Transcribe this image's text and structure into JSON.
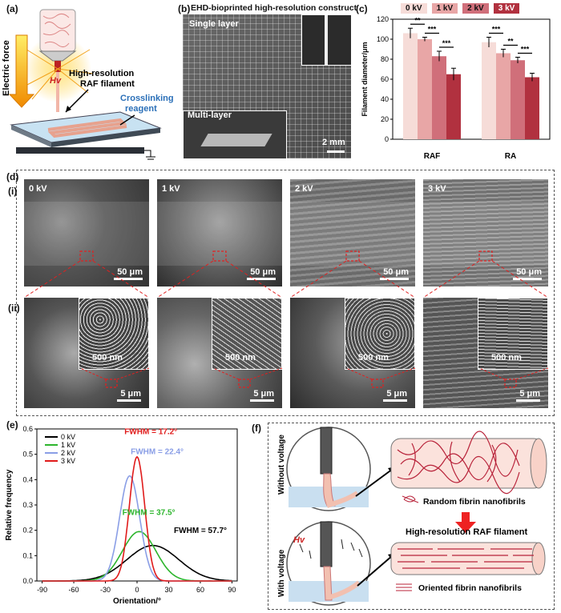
{
  "panel_a": {
    "label": "(a)",
    "hv": "Hv",
    "electric_force": "Electric force",
    "filament_label_1": "High-resolution",
    "filament_label_2": "RAF filament",
    "crosslink_1": "Crosslinking",
    "crosslink_2": "reagent",
    "color_crosslink": "#2a6fb8"
  },
  "panel_b": {
    "label": "(b)",
    "title": "EHD-bioprinted high-resolution construct",
    "single": "Single layer",
    "multi": "Multi-layer",
    "scale": "2 mm"
  },
  "panel_c": {
    "label": "(c)",
    "legend": [
      "0 kV",
      "1 kV",
      "2 kV",
      "3 kV"
    ],
    "ylabel": "Filament diameter/μm",
    "groups": [
      "RAF",
      "RA"
    ],
    "sig": [
      [
        "**",
        "***",
        "***"
      ],
      [
        "***",
        "**",
        "***"
      ]
    ]
  },
  "panel_d": {
    "label": "(d)",
    "row1": "(i)",
    "row2": "(ii)",
    "voltages": [
      "0 kV",
      "1 kV",
      "2 kV",
      "3 kV"
    ],
    "scale_top": "50 μm",
    "scale_bottom": "5 μm",
    "scale_inset": "500 nm"
  },
  "panel_e": {
    "label": "(e)",
    "fwhm": [
      "FWHM = 57.7°",
      "FWHM = 37.5°",
      "FWHM = 22.4°",
      "FWHM = 17.2°"
    ]
  },
  "panel_f": {
    "label": "(f)",
    "without": "Without voltage",
    "with": "With voltage",
    "hv": "Hv",
    "random": "Random fibrin nanofibrils",
    "title": "High-resolution RAF filament",
    "oriented": "Oriented fibrin nanofibrils"
  },
  "chart_data": [
    {
      "type": "bar",
      "categories": [
        "RAF",
        "RA"
      ],
      "series": [
        {
          "name": "0 kV",
          "values": [
            106,
            97
          ],
          "errors": [
            5,
            5
          ]
        },
        {
          "name": "1 kV",
          "values": [
            100,
            86
          ],
          "errors": [
            2,
            4
          ]
        },
        {
          "name": "2 kV",
          "values": [
            83,
            79
          ],
          "errors": [
            5,
            3
          ]
        },
        {
          "name": "3 kV",
          "values": [
            65,
            62
          ],
          "errors": [
            6,
            4
          ]
        }
      ],
      "colors": [
        "#f6dcd8",
        "#e8a6a6",
        "#d06f7a",
        "#b1313f"
      ],
      "ylabel": "Filament diameter/μm",
      "ylim": [
        0,
        120
      ],
      "yticks": [
        0,
        20,
        40,
        60,
        80,
        100,
        120
      ]
    },
    {
      "type": "line",
      "xlabel": "Orientation/°",
      "ylabel": "Relative frequency",
      "xlim": [
        -95,
        95
      ],
      "ylim": [
        0,
        0.6
      ],
      "xticks": [
        -90,
        -60,
        -30,
        0,
        30,
        60,
        90
      ],
      "yticks": [
        0.0,
        0.1,
        0.2,
        0.3,
        0.4,
        0.5,
        0.6
      ],
      "legend_position": "top-left",
      "series": [
        {
          "name": "0 kV",
          "color": "#000000",
          "mean": 15,
          "peak": 0.14
        },
        {
          "name": "1 kV",
          "color": "#2db52d",
          "mean": 2,
          "peak": 0.195
        },
        {
          "name": "2 kV",
          "color": "#8a9ee6",
          "mean": -7,
          "peak": 0.415
        },
        {
          "name": "3 kV",
          "color": "#e01b1b",
          "mean": 0,
          "peak": 0.49
        }
      ]
    }
  ]
}
